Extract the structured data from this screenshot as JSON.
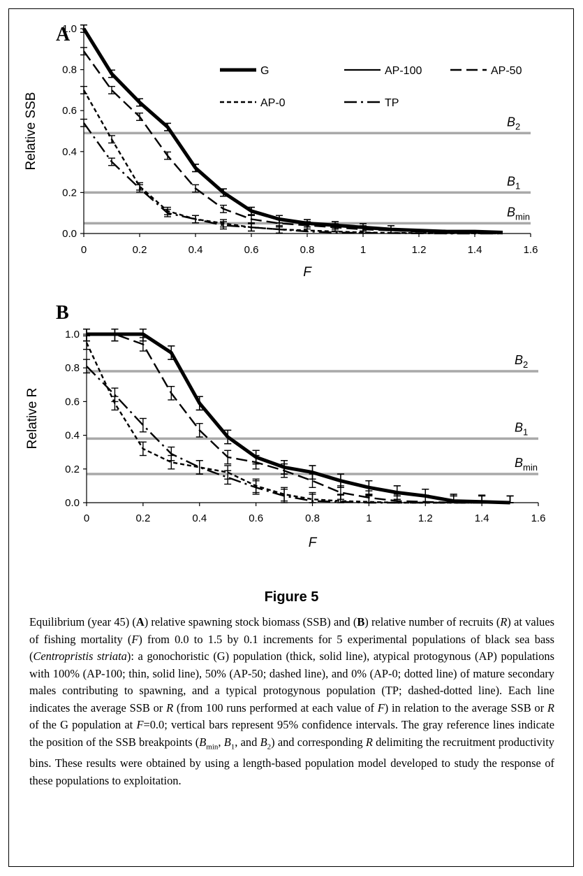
{
  "panels": [
    {
      "letter": "A",
      "ylabel": "Relative SSB",
      "xlabel": "F",
      "refs": [
        {
          "label": "B",
          "sub": "2",
          "value": 0.49
        },
        {
          "label": "B",
          "sub": "1",
          "value": 0.2
        },
        {
          "label": "B",
          "sub": "min",
          "value": 0.05
        }
      ]
    },
    {
      "letter": "B",
      "ylabel": "Relative R",
      "xlabel": "F",
      "refs": [
        {
          "label": "B",
          "sub": "2",
          "value": 0.78
        },
        {
          "label": "B",
          "sub": "1",
          "value": 0.38
        },
        {
          "label": "B",
          "sub": "min",
          "value": 0.17
        }
      ]
    }
  ],
  "legend": [
    "G",
    "AP-100",
    "AP-50",
    "AP-0",
    "TP"
  ],
  "figure_title": "Figure 5",
  "caption": [
    "Equilibrium (year 45) (",
    "A",
    ") relative spawning stock biomass (SSB) and (",
    "B",
    ") relative number of recruits (",
    "R",
    ") at values of fishing mortality (",
    "F",
    ") from 0.0 to 1.5 by 0.1 increments for 5 experimental populations of black sea bass (",
    "Centropristis striata",
    "): a gonochoristic (G) population (thick, solid line), atypical protogynous (AP) populations with 100% (AP-100; thin, solid line), 50% (AP-50; dashed line), and 0% (AP-0; dotted line) of mature secondary males contributing to spawning, and a typical protogynous population (TP; dashed-dotted line). Each line indicates the average SSB or ",
    "R",
    " (from 100 runs performed at each value of ",
    "F",
    ") in relation to the average SSB or ",
    "R",
    " of the G population at ",
    "F",
    "=0.0; vertical bars represent 95% confidence intervals. The gray reference lines indicate the position of the SSB breakpoints (",
    "B",
    "min",
    ", ",
    "B",
    "1",
    ", and ",
    "B",
    "2",
    ") and corresponding ",
    "R",
    " delimiting the recruitment productivity bins. These results were obtained by using a length-based population model developed to study the response of these populations to exploitation."
  ],
  "chart_data": [
    {
      "type": "line",
      "title": "A",
      "xlabel": "F",
      "ylabel": "Relative SSB",
      "xlim": [
        0,
        1.6
      ],
      "ylim": [
        0,
        1.0
      ],
      "xticks": [
        "0",
        "0.2",
        "0.4",
        "0.6",
        "0.8",
        "1",
        "1.2",
        "1.4",
        "1.6"
      ],
      "yticks": [
        "0.0",
        "0.2",
        "0.4",
        "0.6",
        "0.8",
        "1.0"
      ],
      "x": [
        0,
        0.1,
        0.2,
        0.3,
        0.4,
        0.5,
        0.6,
        0.7,
        0.8,
        0.9,
        1.0,
        1.1,
        1.2,
        1.3,
        1.4,
        1.5
      ],
      "series": [
        {
          "name": "G",
          "values": [
            1.0,
            0.78,
            0.64,
            0.52,
            0.32,
            0.2,
            0.11,
            0.07,
            0.05,
            0.04,
            0.03,
            0.02,
            0.015,
            0.01,
            0.01,
            0.005
          ]
        },
        {
          "name": "AP-100",
          "values": [
            1.0,
            0.78,
            0.64,
            0.52,
            0.32,
            0.2,
            0.11,
            0.07,
            0.05,
            0.04,
            0.03,
            0.02,
            0.015,
            0.01,
            0.01,
            0.005
          ]
        },
        {
          "name": "AP-50",
          "values": [
            0.89,
            0.7,
            0.57,
            0.38,
            0.22,
            0.12,
            0.07,
            0.05,
            0.04,
            0.03,
            0.02,
            0.015,
            0.01,
            0.008,
            0.005,
            0.003
          ]
        },
        {
          "name": "AP-0",
          "values": [
            0.7,
            0.46,
            0.23,
            0.11,
            0.07,
            0.05,
            0.03,
            0.02,
            0.015,
            0.01,
            0.005,
            0.003,
            0.002,
            0.001,
            0.001,
            0.0
          ]
        },
        {
          "name": "TP",
          "values": [
            0.54,
            0.35,
            0.22,
            0.1,
            0.07,
            0.04,
            0.03,
            0.02,
            0.01,
            0.005,
            0.003,
            0.002,
            0.001,
            0.0,
            0.0,
            0.0
          ]
        }
      ],
      "reference_lines": [
        0.49,
        0.2,
        0.05
      ],
      "legend_position": "top-right",
      "grid": false
    },
    {
      "type": "line",
      "title": "B",
      "xlabel": "F",
      "ylabel": "Relative R",
      "xlim": [
        0,
        1.6
      ],
      "ylim": [
        0,
        1.0
      ],
      "xticks": [
        "0",
        "0.2",
        "0.4",
        "0.6",
        "0.8",
        "1",
        "1.2",
        "1.4",
        "1.6"
      ],
      "yticks": [
        "0.0",
        "0.2",
        "0.4",
        "0.6",
        "0.8",
        "1.0"
      ],
      "x": [
        0,
        0.1,
        0.2,
        0.3,
        0.4,
        0.5,
        0.6,
        0.7,
        0.8,
        0.9,
        1.0,
        1.1,
        1.2,
        1.3,
        1.4,
        1.5
      ],
      "series": [
        {
          "name": "G",
          "values": [
            1.0,
            1.0,
            1.0,
            0.89,
            0.59,
            0.39,
            0.27,
            0.21,
            0.18,
            0.13,
            0.09,
            0.06,
            0.04,
            0.01,
            0.005,
            0.0
          ]
        },
        {
          "name": "AP-100",
          "values": [
            1.0,
            1.0,
            1.0,
            0.89,
            0.59,
            0.39,
            0.27,
            0.21,
            0.18,
            0.13,
            0.09,
            0.06,
            0.04,
            0.01,
            0.005,
            0.0
          ]
        },
        {
          "name": "AP-50",
          "values": [
            1.0,
            1.0,
            0.94,
            0.65,
            0.43,
            0.27,
            0.24,
            0.19,
            0.13,
            0.06,
            0.03,
            0.01,
            0.005,
            0.0,
            0.0,
            0.0
          ]
        },
        {
          "name": "AP-0",
          "values": [
            0.95,
            0.59,
            0.32,
            0.24,
            0.21,
            0.18,
            0.1,
            0.05,
            0.02,
            0.01,
            0.005,
            0.0,
            0.0,
            0.0,
            0.0,
            0.0
          ]
        },
        {
          "name": "TP",
          "values": [
            0.81,
            0.64,
            0.46,
            0.29,
            0.21,
            0.15,
            0.09,
            0.04,
            0.01,
            0.005,
            0.0,
            0.0,
            0.0,
            0.0,
            0.0,
            0.0
          ]
        }
      ],
      "reference_lines": [
        0.78,
        0.38,
        0.17
      ],
      "grid": false
    }
  ]
}
